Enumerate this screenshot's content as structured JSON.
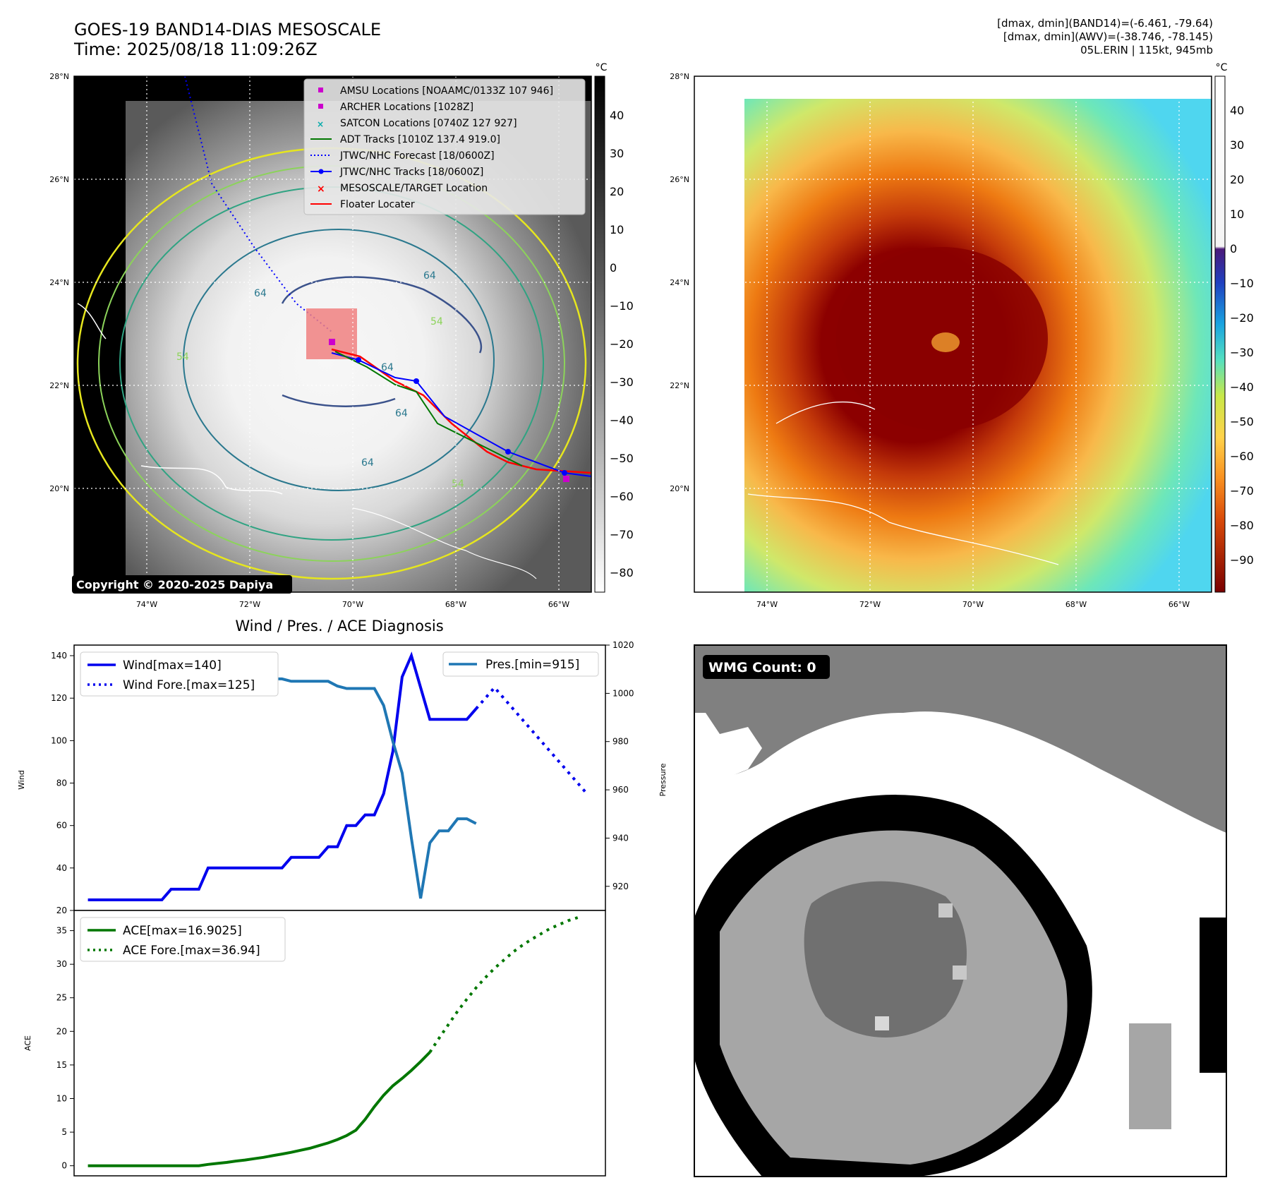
{
  "header": {
    "title_line1": "GOES-19 BAND14-DIAS MESOSCALE",
    "title_line2": "Time: 2025/08/18 11:09:26Z",
    "meta_line1": "[dmax, dmin](BAND14)=(-6.461, -79.64)",
    "meta_line2": "[dmax, dmin](AWV)=(-38.746, -78.145)",
    "meta_line3": "05L.ERIN | 115kt, 945mb"
  },
  "map_axes": {
    "lat_ticks": [
      "28°N",
      "26°N",
      "24°N",
      "22°N",
      "20°N"
    ],
    "lon_ticks": [
      "74°W",
      "72°W",
      "70°W",
      "68°W",
      "66°W"
    ]
  },
  "panel_ir": {
    "colorbar_unit": "°C",
    "colorbar_ticks": [
      "40",
      "30",
      "20",
      "10",
      "0",
      "−10",
      "−20",
      "−30",
      "−40",
      "−50",
      "−60",
      "−70",
      "−80"
    ],
    "copyright": "Copyright © 2020-2025 Dapiya",
    "legend": [
      {
        "label": "AMSU Locations [NOAAMC/0133Z 107 946]",
        "color": "#cc00cc",
        "marker": "square"
      },
      {
        "label": "ARCHER Locations [1028Z]",
        "color": "#cc00cc",
        "marker": "square"
      },
      {
        "label": "SATCON Locations [0740Z 127 927]",
        "color": "#00aaaa",
        "marker": "x"
      },
      {
        "label": "ADT Tracks [1010Z 137.4 919.0]",
        "color": "#007700",
        "marker": "line"
      },
      {
        "label": "JTWC/NHC Forecast [18/0600Z]",
        "color": "#0000ff",
        "marker": "dotted"
      },
      {
        "label": "JTWC/NHC Tracks [18/0600Z]",
        "color": "#0000ff",
        "marker": "line-dot"
      },
      {
        "label": "MESOSCALE/TARGET Location",
        "color": "#ff0000",
        "marker": "x"
      },
      {
        "label": "Floater Locater",
        "color": "#ff0000",
        "marker": "line"
      }
    ],
    "contour_labels": [
      "64",
      "64",
      "54",
      "64",
      "64",
      "64",
      "54",
      "54"
    ]
  },
  "panel_awv": {
    "colorbar_unit": "°C",
    "colorbar_ticks": [
      "40",
      "30",
      "20",
      "10",
      "0",
      "−10",
      "−20",
      "−30",
      "−40",
      "−50",
      "−60",
      "−70",
      "−80",
      "−90"
    ]
  },
  "chart_data": [
    {
      "type": "line",
      "title": "Wind / Pres. / ACE Diagnosis",
      "ylabel": "Wind",
      "ylabel_right": "Pressure",
      "ylim": [
        20,
        145
      ],
      "ylim_right": [
        910,
        1020
      ],
      "yticks": [
        "140",
        "120",
        "100",
        "80",
        "60",
        "40",
        "20"
      ],
      "yticks_right": [
        "1020",
        "1000",
        "980",
        "960",
        "940",
        "920"
      ],
      "x": [
        0,
        1,
        2,
        3,
        4,
        5,
        6,
        7,
        8,
        9,
        10,
        11,
        12,
        13,
        14,
        15,
        16,
        17,
        18,
        19,
        20,
        21,
        22,
        23,
        24,
        25,
        26,
        27,
        28,
        29,
        30,
        31,
        32,
        33,
        34,
        35,
        36,
        37,
        38,
        39,
        40,
        41,
        42,
        43,
        44,
        45,
        46,
        47,
        48,
        49,
        50,
        51,
        52,
        53,
        54
      ],
      "series": [
        {
          "name": "Wind[max=140]",
          "style": "solid",
          "color": "#0000ee",
          "values": [
            25,
            25,
            25,
            25,
            25,
            25,
            25,
            25,
            25,
            30,
            30,
            30,
            30,
            40,
            40,
            40,
            40,
            40,
            40,
            40,
            40,
            40,
            45,
            45,
            45,
            45,
            50,
            50,
            60,
            60,
            65,
            65,
            75,
            95,
            130,
            140,
            125,
            110,
            110,
            110,
            110,
            110,
            115,
            null,
            null,
            null,
            null,
            null,
            null,
            null,
            null,
            null,
            null,
            null,
            null
          ]
        },
        {
          "name": "Wind Fore.[max=125]",
          "style": "dotted",
          "color": "#0000ee",
          "values": [
            null,
            null,
            null,
            null,
            null,
            null,
            null,
            null,
            null,
            null,
            null,
            null,
            null,
            null,
            null,
            null,
            null,
            null,
            null,
            null,
            null,
            null,
            null,
            null,
            null,
            null,
            null,
            null,
            null,
            null,
            null,
            null,
            null,
            null,
            null,
            null,
            null,
            null,
            null,
            null,
            null,
            null,
            115,
            120,
            125,
            120,
            115,
            110,
            105,
            100,
            95,
            90,
            85,
            80,
            75
          ]
        },
        {
          "name": "Pres.[min=915]",
          "style": "solid",
          "color": "#1f77b4",
          "axis": "right",
          "values": [
            1015,
            1015,
            1010,
            1009,
            1008,
            1008,
            1008,
            1008,
            1008,
            1008,
            1008,
            1008,
            1008,
            1007,
            1007,
            1007,
            1006,
            1006,
            1008,
            1008,
            1006,
            1006,
            1005,
            1005,
            1005,
            1005,
            1005,
            1003,
            1002,
            1002,
            1002,
            1002,
            995,
            980,
            967,
            940,
            915,
            938,
            943,
            943,
            948,
            948,
            946,
            null,
            null,
            null,
            null,
            null,
            null,
            null,
            null,
            null,
            null,
            null,
            null
          ]
        }
      ]
    },
    {
      "type": "line",
      "ylabel": "ACE",
      "ylim": [
        -1.5,
        38
      ],
      "yticks": [
        "35",
        "30",
        "25",
        "20",
        "15",
        "10",
        "5",
        "0"
      ],
      "x": [
        0,
        1,
        2,
        3,
        4,
        5,
        6,
        7,
        8,
        9,
        10,
        11,
        12,
        13,
        14,
        15,
        16,
        17,
        18,
        19,
        20,
        21,
        22,
        23,
        24,
        25,
        26,
        27,
        28,
        29,
        30,
        31,
        32,
        33,
        34,
        35,
        36,
        37,
        38,
        39,
        40,
        41,
        42,
        43,
        44,
        45,
        46,
        47,
        48,
        49,
        50,
        51,
        52,
        53,
        54
      ],
      "series": [
        {
          "name": "ACE[max=16.9025]",
          "style": "solid",
          "color": "#007700",
          "values": [
            0,
            0,
            0,
            0,
            0,
            0,
            0,
            0,
            0,
            0,
            0,
            0,
            0,
            0.2,
            0.35,
            0.5,
            0.7,
            0.85,
            1.05,
            1.25,
            1.5,
            1.75,
            2.0,
            2.3,
            2.6,
            3.0,
            3.4,
            3.9,
            4.5,
            5.3,
            6.9,
            8.8,
            10.5,
            11.9,
            13.0,
            14.2,
            15.5,
            16.9,
            null,
            null,
            null,
            null,
            null,
            null,
            null,
            null,
            null,
            null,
            null,
            null,
            null,
            null,
            null,
            null,
            null
          ]
        },
        {
          "name": "ACE Fore.[max=36.94]",
          "style": "dotted",
          "color": "#007700",
          "values": [
            null,
            null,
            null,
            null,
            null,
            null,
            null,
            null,
            null,
            null,
            null,
            null,
            null,
            null,
            null,
            null,
            null,
            null,
            null,
            null,
            null,
            null,
            null,
            null,
            null,
            null,
            null,
            null,
            null,
            null,
            null,
            null,
            null,
            null,
            null,
            null,
            null,
            16.9,
            19.0,
            21.0,
            23.0,
            24.8,
            26.5,
            28.0,
            29.4,
            30.6,
            31.8,
            32.8,
            33.7,
            34.5,
            35.3,
            35.9,
            36.5,
            36.94,
            null
          ]
        }
      ]
    }
  ],
  "panel_wmg": {
    "label": "WMG Count: 0"
  }
}
